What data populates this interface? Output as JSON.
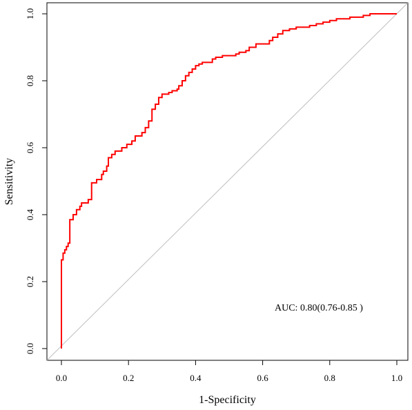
{
  "chart_data": {
    "type": "line",
    "title": "",
    "xlabel": "1-Specificity",
    "ylabel": "Sensitivity",
    "xlim": [
      0,
      1
    ],
    "ylim": [
      0,
      1
    ],
    "x_ticks": [
      "0.0",
      "0.2",
      "0.4",
      "0.6",
      "0.8",
      "1.0"
    ],
    "y_ticks": [
      "0.0",
      "0.2",
      "0.4",
      "0.6",
      "0.8",
      "1.0"
    ],
    "grid": false,
    "legend": "none",
    "annotation": "AUC: 0.80(0.76-0.85 )",
    "colors": {
      "roc_curve": "#ff0000",
      "reference_line": "#bebebe",
      "axes": "#000000"
    },
    "series": [
      {
        "x": [
          0.0,
          0.0,
          0.005,
          0.005,
          0.01,
          0.01,
          0.015,
          0.015,
          0.02,
          0.02,
          0.025,
          0.025,
          0.035,
          0.035,
          0.045,
          0.045,
          0.055,
          0.055,
          0.06,
          0.06,
          0.08,
          0.08,
          0.09,
          0.09,
          0.105,
          0.105,
          0.12,
          0.12,
          0.125,
          0.125,
          0.135,
          0.135,
          0.14,
          0.14,
          0.15,
          0.15,
          0.16,
          0.16,
          0.18,
          0.18,
          0.195,
          0.195,
          0.21,
          0.21,
          0.22,
          0.22,
          0.24,
          0.24,
          0.25,
          0.25,
          0.26,
          0.26,
          0.27,
          0.27,
          0.28,
          0.28,
          0.29,
          0.29,
          0.3,
          0.3,
          0.32,
          0.32,
          0.33,
          0.33,
          0.345,
          0.345,
          0.35,
          0.35,
          0.36,
          0.36,
          0.37,
          0.37,
          0.38,
          0.38,
          0.39,
          0.39,
          0.4,
          0.4,
          0.41,
          0.41,
          0.42,
          0.42,
          0.45,
          0.45,
          0.46,
          0.46,
          0.48,
          0.48,
          0.52,
          0.52,
          0.53,
          0.53,
          0.55,
          0.55,
          0.56,
          0.56,
          0.58,
          0.58,
          0.62,
          0.62,
          0.63,
          0.63,
          0.645,
          0.645,
          0.66,
          0.66,
          0.68,
          0.68,
          0.7,
          0.7,
          0.74,
          0.74,
          0.76,
          0.76,
          0.78,
          0.78,
          0.8,
          0.8,
          0.82,
          0.82,
          0.86,
          0.86,
          0.9,
          0.9,
          0.92,
          0.92,
          1.0
        ],
        "y": [
          0.0,
          0.265,
          0.265,
          0.285,
          0.285,
          0.295,
          0.295,
          0.305,
          0.305,
          0.315,
          0.315,
          0.385,
          0.385,
          0.4,
          0.4,
          0.415,
          0.415,
          0.425,
          0.425,
          0.435,
          0.435,
          0.445,
          0.445,
          0.495,
          0.495,
          0.505,
          0.505,
          0.52,
          0.52,
          0.53,
          0.53,
          0.545,
          0.545,
          0.57,
          0.57,
          0.58,
          0.58,
          0.59,
          0.59,
          0.6,
          0.6,
          0.61,
          0.61,
          0.62,
          0.62,
          0.635,
          0.635,
          0.645,
          0.645,
          0.66,
          0.66,
          0.68,
          0.68,
          0.715,
          0.715,
          0.73,
          0.73,
          0.75,
          0.75,
          0.76,
          0.76,
          0.765,
          0.765,
          0.77,
          0.77,
          0.775,
          0.775,
          0.785,
          0.785,
          0.8,
          0.8,
          0.815,
          0.815,
          0.825,
          0.825,
          0.835,
          0.835,
          0.845,
          0.845,
          0.85,
          0.85,
          0.855,
          0.855,
          0.865,
          0.865,
          0.87,
          0.87,
          0.875,
          0.875,
          0.88,
          0.88,
          0.885,
          0.885,
          0.89,
          0.89,
          0.9,
          0.9,
          0.91,
          0.91,
          0.92,
          0.92,
          0.93,
          0.93,
          0.94,
          0.94,
          0.95,
          0.95,
          0.955,
          0.955,
          0.96,
          0.96,
          0.965,
          0.965,
          0.97,
          0.97,
          0.975,
          0.975,
          0.98,
          0.98,
          0.985,
          0.985,
          0.99,
          0.99,
          0.995,
          0.995,
          1.0,
          1.0
        ]
      }
    ]
  }
}
